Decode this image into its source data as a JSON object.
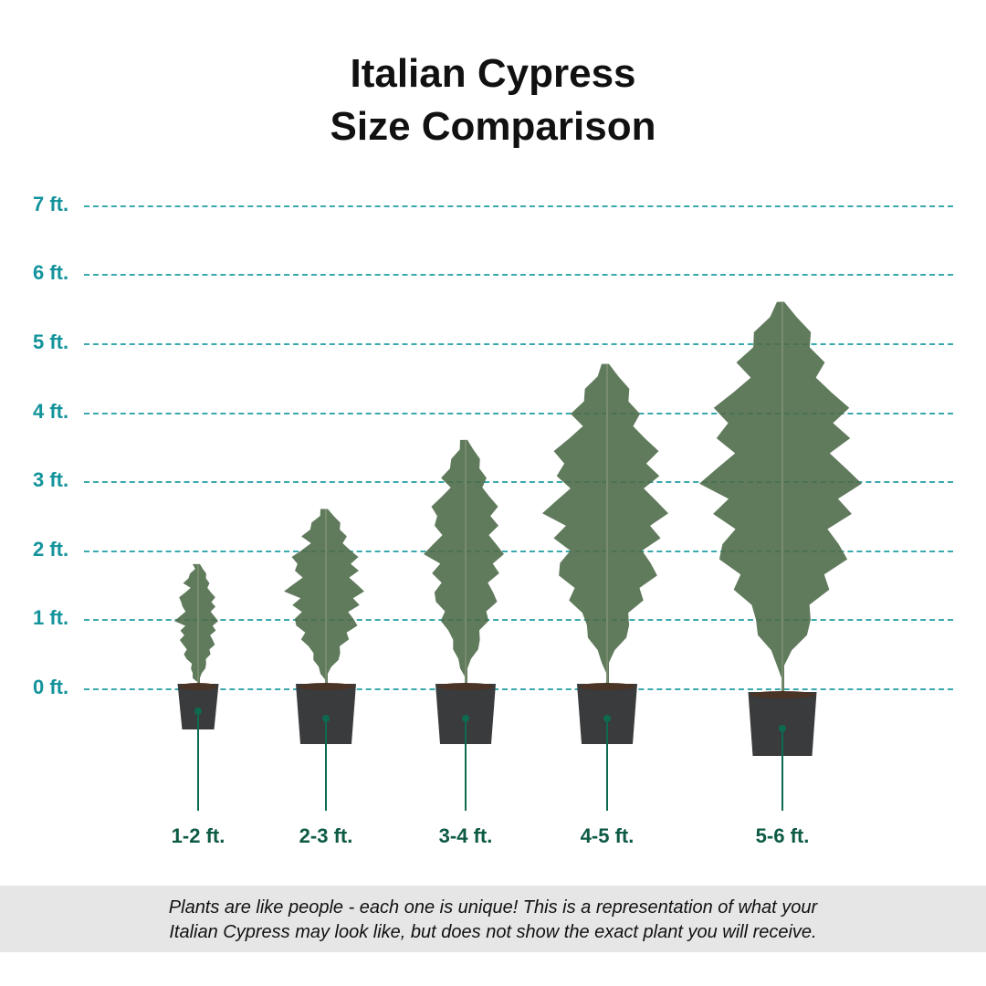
{
  "title": {
    "line1": "Italian Cypress",
    "line2": "Size Comparison"
  },
  "height_scale": [
    "7 ft.",
    "6 ft.",
    "5 ft.",
    "4 ft.",
    "3 ft.",
    "2 ft.",
    "1 ft.",
    "0 ft."
  ],
  "plants": [
    {
      "label": "1-2 ft.",
      "height_ft": 1.8
    },
    {
      "label": "2-3 ft.",
      "height_ft": 2.6
    },
    {
      "label": "3-4 ft.",
      "height_ft": 3.6
    },
    {
      "label": "4-5 ft.",
      "height_ft": 4.7
    },
    {
      "label": "5-6 ft.",
      "height_ft": 5.6
    }
  ],
  "footer": {
    "line1": "Plants are like people - each one is unique! This is a representation of what your",
    "line2": "Italian Cypress may look like, but does not show the exact plant you will receive."
  },
  "colors": {
    "scale": "#13939b",
    "label": "#0d5a45",
    "foliage": "#4f6b4a",
    "pot": "#3a3b3d",
    "footer_bg": "#e6e6e6"
  }
}
